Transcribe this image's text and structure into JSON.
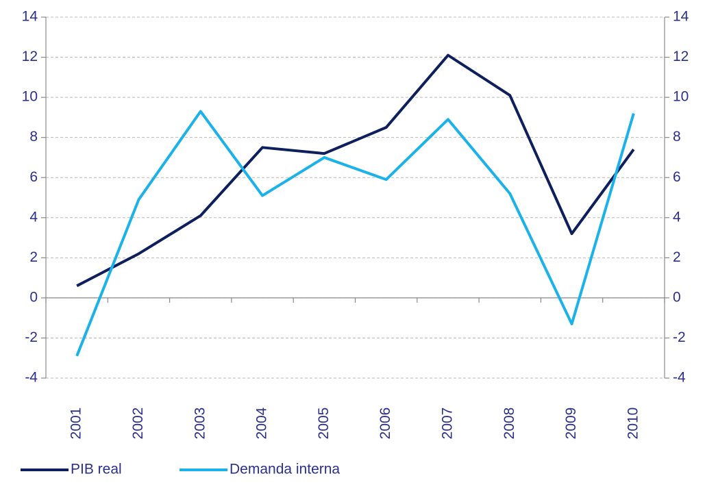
{
  "chart_data": {
    "type": "line",
    "categories": [
      "2001",
      "2002",
      "2003",
      "2004",
      "2005",
      "2006",
      "2007",
      "2008",
      "2009",
      "2010"
    ],
    "series": [
      {
        "name": "PIB real",
        "color": "#0d1f5c",
        "values": [
          0.6,
          2.2,
          4.1,
          7.5,
          7.2,
          8.5,
          12.1,
          10.1,
          3.2,
          7.4
        ]
      },
      {
        "name": "Demanda interna",
        "color": "#1ab2e8",
        "values": [
          -2.9,
          4.9,
          9.3,
          5.1,
          7.0,
          5.9,
          8.9,
          5.2,
          -1.3,
          9.2
        ]
      }
    ],
    "ylim": [
      -4,
      14
    ],
    "yticks": [
      -4,
      -2,
      0,
      2,
      4,
      6,
      8,
      10,
      12,
      14
    ],
    "y2lim": [
      -4,
      14
    ],
    "y2ticks": [
      -4,
      -2,
      0,
      2,
      4,
      6,
      8,
      10,
      12,
      14
    ],
    "grid": true
  }
}
